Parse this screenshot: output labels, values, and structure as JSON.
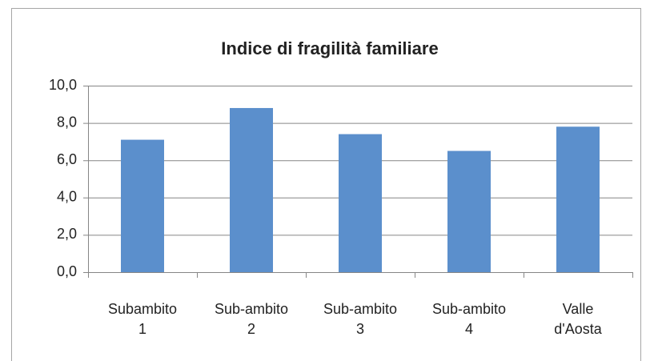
{
  "chart_data": {
    "type": "bar",
    "title": "Indice di fragilità familiare",
    "categories": [
      "Subambito\n1",
      "Sub-ambito\n2",
      "Sub-ambito\n3",
      "Sub-ambito\n4",
      "Valle\nd'Aosta"
    ],
    "values": [
      7.1,
      8.8,
      7.4,
      6.5,
      7.8
    ],
    "color": "#5b8fcc",
    "ylim": [
      0,
      10
    ],
    "yticks": [
      {
        "value": 0,
        "label": "0,0"
      },
      {
        "value": 2,
        "label": "2,0"
      },
      {
        "value": 4,
        "label": "4,0"
      },
      {
        "value": 6,
        "label": "6,0"
      },
      {
        "value": 8,
        "label": "8,0"
      },
      {
        "value": 10,
        "label": "10,0"
      }
    ],
    "grid": true
  }
}
